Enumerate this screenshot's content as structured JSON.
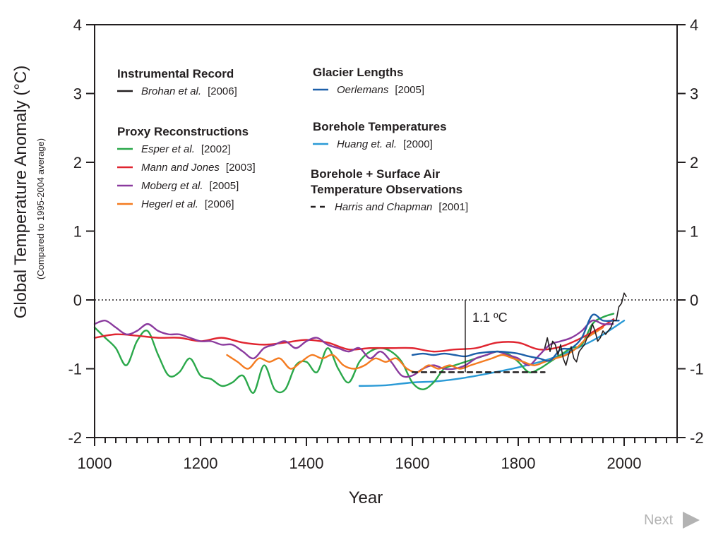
{
  "chart_data": {
    "type": "line",
    "xlabel": "Year",
    "ylabel": "Global Temperature Anomaly (°C)",
    "ylabel_sub": "(Compared to 1995-2004 average)",
    "xlim": [
      1000,
      2100
    ],
    "ylim": [
      -2,
      4
    ],
    "x_ticks": [
      1000,
      1200,
      1400,
      1600,
      1800,
      2000
    ],
    "y_ticks": [
      4,
      3,
      2,
      1,
      0,
      -1,
      -2
    ],
    "y_tick_labels": [
      "4",
      "3",
      "2",
      "1",
      "0",
      "-1",
      "-2"
    ],
    "reference_line": {
      "y": 0,
      "style": "dotted"
    },
    "annotation": {
      "text": "1.1 ºC",
      "x": 1700,
      "y_from": 0,
      "y_to": -1.05
    },
    "legend_groups": [
      {
        "heading": [
          "Instrumental Record"
        ],
        "entries": [
          {
            "name": "Brohan et al.",
            "year": "[2006]"
          }
        ]
      },
      {
        "heading": [
          "Proxy Reconstructions"
        ],
        "entries": [
          {
            "name": "Esper et al.",
            "year": "[2002]"
          },
          {
            "name": "Mann and Jones",
            "year": "[2003]"
          },
          {
            "name": "Moberg et al.",
            "year": "[2005]"
          },
          {
            "name": "Hegerl et al.",
            "year": "[2006]"
          }
        ]
      },
      {
        "heading": [
          "Glacier Lengths"
        ],
        "entries": [
          {
            "name": "Oerlemans",
            "year": "[2005]"
          }
        ]
      },
      {
        "heading": [
          "Borehole Temperatures"
        ],
        "entries": [
          {
            "name": "Huang et. al.",
            "year": "[2000]"
          }
        ]
      },
      {
        "heading": [
          "Borehole + Surface Air",
          "Temperature Observations"
        ],
        "entries": [
          {
            "name": "Harris and Chapman",
            "year": "[2001]"
          }
        ]
      }
    ],
    "series": [
      {
        "name": "Brohan et al. [2006]",
        "color": "#231f20",
        "style": "solid",
        "x": [
          1850,
          1855,
          1860,
          1865,
          1870,
          1875,
          1880,
          1885,
          1890,
          1895,
          1900,
          1905,
          1910,
          1915,
          1920,
          1925,
          1930,
          1935,
          1940,
          1945,
          1950,
          1955,
          1960,
          1965,
          1970,
          1975,
          1980,
          1985,
          1990,
          1995,
          2000,
          2004
        ],
        "y": [
          -0.7,
          -0.55,
          -0.75,
          -0.6,
          -0.65,
          -0.8,
          -0.65,
          -0.85,
          -0.95,
          -0.8,
          -0.68,
          -0.85,
          -0.9,
          -0.75,
          -0.7,
          -0.65,
          -0.55,
          -0.5,
          -0.35,
          -0.45,
          -0.6,
          -0.55,
          -0.45,
          -0.5,
          -0.45,
          -0.4,
          -0.3,
          -0.3,
          -0.1,
          -0.05,
          0.1,
          0.05
        ]
      },
      {
        "name": "Esper et al. [2002]",
        "color": "#2aa84a",
        "style": "solid",
        "x": [
          1000,
          1020,
          1040,
          1060,
          1080,
          1100,
          1120,
          1140,
          1160,
          1180,
          1200,
          1220,
          1240,
          1260,
          1280,
          1300,
          1320,
          1340,
          1360,
          1380,
          1400,
          1420,
          1440,
          1460,
          1480,
          1500,
          1520,
          1540,
          1560,
          1580,
          1600,
          1620,
          1640,
          1660,
          1680,
          1700,
          1720,
          1740,
          1760,
          1780,
          1800,
          1820,
          1840,
          1860,
          1880,
          1900,
          1920,
          1940,
          1960,
          1980
        ],
        "y": [
          -0.4,
          -0.55,
          -0.7,
          -0.95,
          -0.6,
          -0.45,
          -0.8,
          -1.1,
          -1.05,
          -0.85,
          -1.1,
          -1.15,
          -1.25,
          -1.2,
          -1.1,
          -1.35,
          -0.95,
          -1.3,
          -1.3,
          -0.95,
          -0.9,
          -1.05,
          -0.7,
          -1.0,
          -1.2,
          -0.9,
          -0.75,
          -0.7,
          -0.75,
          -0.9,
          -1.2,
          -1.3,
          -1.2,
          -1.0,
          -0.95,
          -0.9,
          -0.85,
          -0.8,
          -0.75,
          -0.78,
          -0.9,
          -1.05,
          -1.0,
          -0.9,
          -0.8,
          -0.7,
          -0.65,
          -0.35,
          -0.25,
          -0.2
        ]
      },
      {
        "name": "Mann and Jones [2003]",
        "color": "#e02530",
        "style": "solid",
        "x": [
          1000,
          1040,
          1080,
          1120,
          1160,
          1200,
          1240,
          1280,
          1320,
          1360,
          1400,
          1440,
          1480,
          1520,
          1560,
          1600,
          1640,
          1680,
          1720,
          1760,
          1800,
          1840,
          1880,
          1920,
          1960,
          1980
        ],
        "y": [
          -0.55,
          -0.5,
          -0.52,
          -0.55,
          -0.55,
          -0.6,
          -0.55,
          -0.62,
          -0.65,
          -0.62,
          -0.58,
          -0.62,
          -0.72,
          -0.7,
          -0.7,
          -0.7,
          -0.75,
          -0.72,
          -0.7,
          -0.62,
          -0.62,
          -0.72,
          -0.68,
          -0.55,
          -0.38,
          -0.28
        ]
      },
      {
        "name": "Moberg et al. [2005]",
        "color": "#8a3a9e",
        "style": "solid",
        "x": [
          1000,
          1020,
          1040,
          1060,
          1080,
          1100,
          1120,
          1140,
          1160,
          1180,
          1200,
          1220,
          1240,
          1260,
          1280,
          1300,
          1320,
          1340,
          1360,
          1380,
          1400,
          1420,
          1440,
          1460,
          1480,
          1500,
          1520,
          1540,
          1560,
          1580,
          1600,
          1620,
          1640,
          1660,
          1680,
          1700,
          1720,
          1740,
          1760,
          1780,
          1800,
          1820,
          1840,
          1860,
          1880,
          1900,
          1920,
          1940,
          1960,
          1979
        ],
        "y": [
          -0.35,
          -0.3,
          -0.4,
          -0.5,
          -0.45,
          -0.35,
          -0.45,
          -0.5,
          -0.5,
          -0.55,
          -0.6,
          -0.6,
          -0.65,
          -0.65,
          -0.75,
          -0.85,
          -0.7,
          -0.65,
          -0.6,
          -0.7,
          -0.6,
          -0.55,
          -0.65,
          -0.7,
          -0.75,
          -0.7,
          -0.85,
          -0.75,
          -0.9,
          -1.1,
          -1.1,
          -1.0,
          -0.95,
          -1.0,
          -1.0,
          -0.95,
          -0.85,
          -0.8,
          -0.75,
          -0.8,
          -0.85,
          -0.95,
          -0.8,
          -0.65,
          -0.6,
          -0.55,
          -0.45,
          -0.3,
          -0.35,
          -0.35
        ]
      },
      {
        "name": "Hegerl et al. [2006]",
        "color": "#f47b20",
        "style": "solid",
        "x": [
          1250,
          1270,
          1290,
          1310,
          1330,
          1350,
          1370,
          1390,
          1410,
          1430,
          1450,
          1470,
          1490,
          1510,
          1530,
          1550,
          1570,
          1590,
          1610,
          1630,
          1650,
          1670,
          1690,
          1710,
          1730,
          1750,
          1770,
          1790,
          1810,
          1830,
          1850,
          1870,
          1890,
          1910,
          1930,
          1950,
          1960
        ],
        "y": [
          -0.8,
          -0.9,
          -1.0,
          -0.85,
          -0.9,
          -0.85,
          -1.0,
          -0.9,
          -0.8,
          -0.85,
          -0.8,
          -0.95,
          -1.0,
          -0.95,
          -0.85,
          -0.9,
          -0.85,
          -1.0,
          -1.05,
          -0.95,
          -1.0,
          -0.95,
          -1.0,
          -0.95,
          -0.9,
          -0.85,
          -0.8,
          -0.85,
          -0.9,
          -0.95,
          -0.9,
          -0.85,
          -0.8,
          -0.7,
          -0.55,
          -0.45,
          -0.4
        ]
      },
      {
        "name": "Oerlemans [2005]",
        "color": "#1c5fa9",
        "style": "solid",
        "x": [
          1600,
          1620,
          1640,
          1660,
          1680,
          1700,
          1720,
          1740,
          1760,
          1780,
          1800,
          1820,
          1840,
          1860,
          1880,
          1900,
          1920,
          1940,
          1960,
          1980,
          1990
        ],
        "y": [
          -0.8,
          -0.78,
          -0.8,
          -0.78,
          -0.8,
          -0.82,
          -0.78,
          -0.76,
          -0.75,
          -0.76,
          -0.78,
          -0.82,
          -0.85,
          -0.88,
          -0.72,
          -0.7,
          -0.55,
          -0.22,
          -0.3,
          -0.3,
          -0.3
        ]
      },
      {
        "name": "Huang et. al. [2000]",
        "color": "#2a9ad6",
        "style": "solid",
        "x": [
          1500,
          1550,
          1600,
          1650,
          1700,
          1750,
          1800,
          1850,
          1900,
          1950,
          2000
        ],
        "y": [
          -1.25,
          -1.24,
          -1.2,
          -1.18,
          -1.13,
          -1.06,
          -0.98,
          -0.88,
          -0.74,
          -0.55,
          -0.3
        ]
      },
      {
        "name": "Harris and Chapman [2001]",
        "color": "#231f20",
        "style": "dashed",
        "x": [
          1600,
          1700,
          1800,
          1850
        ],
        "y": [
          -1.05,
          -1.05,
          -1.05,
          -1.05
        ]
      }
    ]
  },
  "nav": {
    "next_label": "Next"
  }
}
